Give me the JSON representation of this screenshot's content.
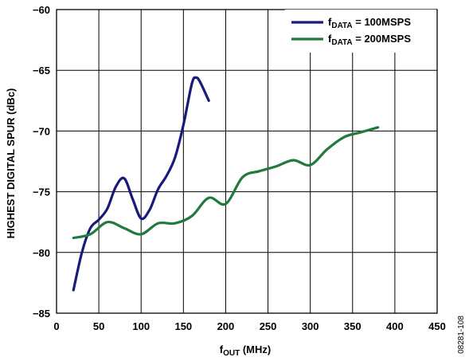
{
  "chart_data": {
    "type": "line",
    "xlabel": {
      "main": "f",
      "sub": "OUT",
      "rest": " (MHz)"
    },
    "ylabel": "HIGHEST DIGITAL SPUR (dBc)",
    "xlim": [
      0,
      450
    ],
    "ylim": [
      -85,
      -60
    ],
    "xticks": [
      "0",
      "50",
      "100",
      "150",
      "200",
      "250",
      "300",
      "350",
      "400",
      "450"
    ],
    "yticks": [
      "−60",
      "−65",
      "−70",
      "−75",
      "−80",
      "−85"
    ],
    "grid": true,
    "legend_position": "top-right",
    "series": [
      {
        "name": {
          "main": "f",
          "sub": "DATA",
          "rest": " = 100MSPS"
        },
        "color": "#1a1a7a",
        "x": [
          20,
          30,
          40,
          50,
          60,
          70,
          80,
          90,
          100,
          110,
          120,
          130,
          140,
          150,
          160,
          165,
          170,
          180
        ],
        "y": [
          -83.1,
          -80.0,
          -78.0,
          -77.3,
          -76.4,
          -74.6,
          -73.9,
          -75.6,
          -77.2,
          -76.5,
          -74.8,
          -73.7,
          -72.2,
          -69.5,
          -66.1,
          -65.6,
          -66.0,
          -67.5
        ]
      },
      {
        "name": {
          "main": "f",
          "sub": "DATA",
          "rest": " = 200MSPS"
        },
        "color": "#1f7a3c",
        "x": [
          20,
          40,
          60,
          80,
          100,
          120,
          140,
          160,
          180,
          200,
          220,
          240,
          260,
          280,
          300,
          320,
          340,
          360,
          380
        ],
        "y": [
          -78.8,
          -78.5,
          -77.5,
          -78.0,
          -78.5,
          -77.6,
          -77.6,
          -77.0,
          -75.5,
          -76.0,
          -73.8,
          -73.3,
          -72.9,
          -72.4,
          -72.8,
          -71.5,
          -70.5,
          -70.1,
          -69.7
        ]
      }
    ],
    "figure_id": "08281-108"
  }
}
